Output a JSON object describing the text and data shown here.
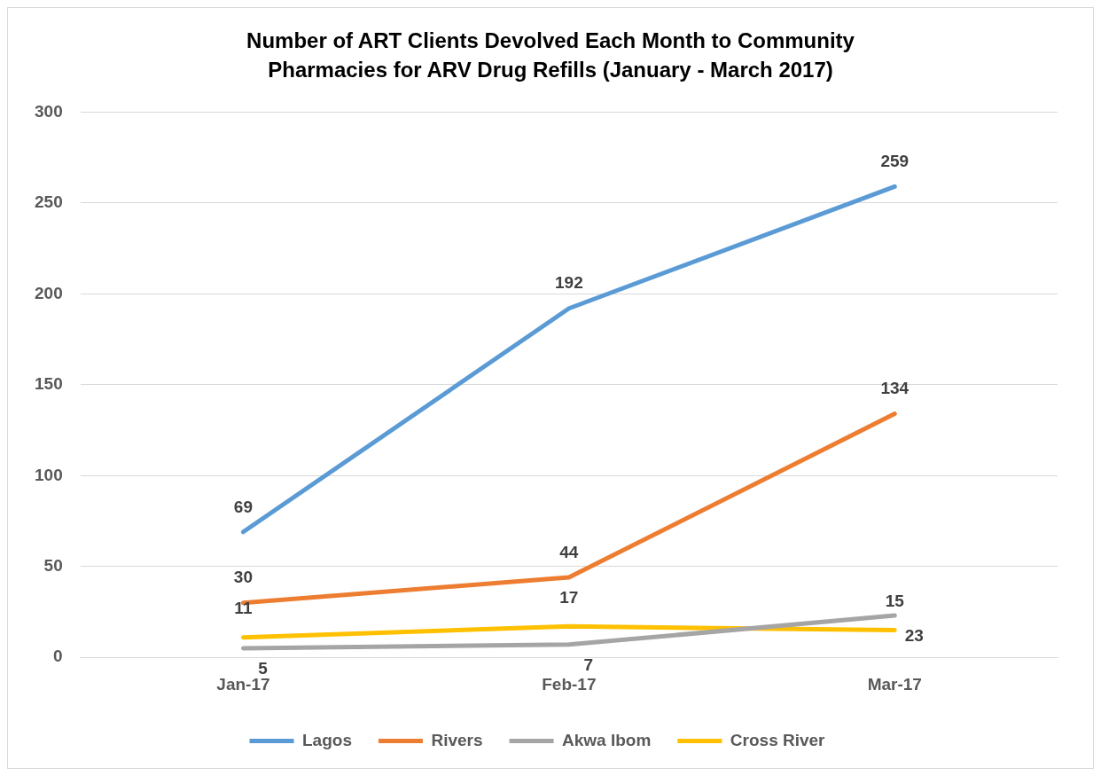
{
  "chart_data": {
    "type": "line",
    "title": "Number of ART Clients Devolved Each Month to Community Pharmacies for ARV Drug Refills  (January - March 2017)",
    "categories": [
      "Jan-17",
      "Feb-17",
      "Mar-17"
    ],
    "series": [
      {
        "name": "Lagos",
        "color": "#5b9bd5",
        "values": [
          69,
          192,
          259
        ]
      },
      {
        "name": "Rivers",
        "color": "#ed7d31",
        "values": [
          30,
          44,
          134
        ]
      },
      {
        "name": "Akwa Ibom",
        "color": "#a5a5a5",
        "values": [
          5,
          7,
          23
        ]
      },
      {
        "name": "Cross River",
        "color": "#ffc000",
        "values": [
          11,
          17,
          15
        ]
      }
    ],
    "ylim": [
      0,
      300
    ],
    "yticks": [
      0,
      50,
      100,
      150,
      200,
      250,
      300
    ],
    "grid": "y",
    "legend": "bottom",
    "data_labels": true,
    "marker": "none",
    "line_style": "solid"
  }
}
